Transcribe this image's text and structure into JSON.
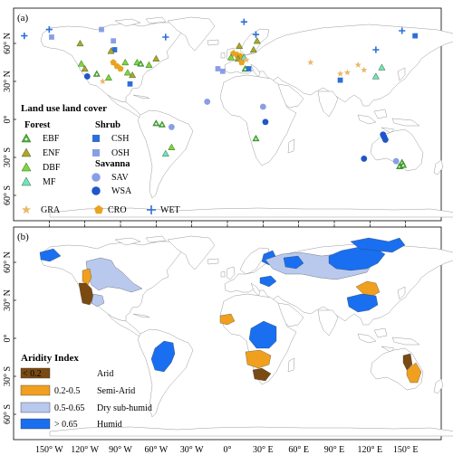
{
  "panels": {
    "a_label": "(a)",
    "b_label": "(b)"
  },
  "x_ticks": [
    "150° W",
    "120° W",
    "90° W",
    "60° W",
    "30° W",
    "0°",
    "30° E",
    "60° E",
    "90° E",
    "120° E",
    "150° E"
  ],
  "y_ticks": [
    "60° N",
    "30° N",
    "0°",
    "30° S",
    "60° S"
  ],
  "legend_a": {
    "title": "Land use land cover",
    "groups": {
      "forest": "Forest",
      "shrub": "Shrub",
      "savanna": "Savanna"
    },
    "items": [
      {
        "code": "EBF",
        "color": "#4caf3a",
        "marker": "tri-open-dot"
      },
      {
        "code": "ENF",
        "color": "#b8a12a",
        "marker": "tri"
      },
      {
        "code": "DBF",
        "color": "#7ed63c",
        "marker": "tri"
      },
      {
        "code": "MF",
        "color": "#74e0c6",
        "marker": "tri"
      },
      {
        "code": "CSH",
        "color": "#2d6fd6",
        "marker": "square"
      },
      {
        "code": "OSH",
        "color": "#8a9ee6",
        "marker": "square"
      },
      {
        "code": "SAV",
        "color": "#8a9ee6",
        "marker": "circle"
      },
      {
        "code": "WSA",
        "color": "#1f56c9",
        "marker": "circle"
      },
      {
        "code": "GRA",
        "color": "#e9b86a",
        "marker": "star"
      },
      {
        "code": "CRO",
        "color": "#e8a41f",
        "marker": "pentagon"
      },
      {
        "code": "WET",
        "color": "#2d6fd6",
        "marker": "plus"
      }
    ]
  },
  "legend_b": {
    "title": "Aridity Index",
    "classes": [
      {
        "range": "< 0.2",
        "name": "Arid",
        "color": "#7a4a12"
      },
      {
        "range": "0.2-0.5",
        "name": "Semi-Arid",
        "color": "#f0a01e"
      },
      {
        "range": "0.5-0.65",
        "name": "Dry sub-humid",
        "color": "#b9c9ee"
      },
      {
        "range": "> 0.65",
        "name": "Humid",
        "color": "#1a6ff0"
      }
    ]
  },
  "sites": [
    {
      "type": "WET",
      "lon": -171,
      "lat": 66
    },
    {
      "type": "WET",
      "lon": -150,
      "lat": 71
    },
    {
      "type": "OSH",
      "lon": -148,
      "lat": 65
    },
    {
      "type": "ENF",
      "lon": -124,
      "lat": 60
    },
    {
      "type": "OSH",
      "lon": -106,
      "lat": 71
    },
    {
      "type": "OSH",
      "lon": -96,
      "lat": 62
    },
    {
      "type": "CSH",
      "lon": -95,
      "lat": 55
    },
    {
      "type": "ENF",
      "lon": -98,
      "lat": 54
    },
    {
      "type": "CRO",
      "lon": -96,
      "lat": 45
    },
    {
      "type": "CRO",
      "lon": -93,
      "lat": 42
    },
    {
      "type": "CRO",
      "lon": -90,
      "lat": 40
    },
    {
      "type": "DBF",
      "lon": -86,
      "lat": 45
    },
    {
      "type": "DBF",
      "lon": -76,
      "lat": 45
    },
    {
      "type": "DBF",
      "lon": -84,
      "lat": 37
    },
    {
      "type": "ENF",
      "lon": -80,
      "lat": 35
    },
    {
      "type": "EBF",
      "lon": -73,
      "lat": 44
    },
    {
      "type": "CSH",
      "lon": -82,
      "lat": 28
    },
    {
      "type": "DBF",
      "lon": -123,
      "lat": 44
    },
    {
      "type": "ENF",
      "lon": -120,
      "lat": 40
    },
    {
      "type": "DBF",
      "lon": -100,
      "lat": 33
    },
    {
      "type": "EBF",
      "lon": -110,
      "lat": 36
    },
    {
      "type": "WSA",
      "lon": -118,
      "lat": 34
    },
    {
      "type": "GRA",
      "lon": -105,
      "lat": 30
    },
    {
      "type": "DBF",
      "lon": -66,
      "lat": 43
    },
    {
      "type": "ENF",
      "lon": -60,
      "lat": 48
    },
    {
      "type": "WET",
      "lon": -52,
      "lat": 65
    },
    {
      "type": "EBF",
      "lon": -60,
      "lat": -3
    },
    {
      "type": "EBF",
      "lon": -55,
      "lat": -4
    },
    {
      "type": "SAV",
      "lon": -47,
      "lat": -6
    },
    {
      "type": "DBF",
      "lon": -47,
      "lat": -22
    },
    {
      "type": "MF",
      "lon": -52,
      "lat": -27
    },
    {
      "type": "WET",
      "lon": 14,
      "lat": 77
    },
    {
      "type": "WET",
      "lon": 24,
      "lat": 67
    },
    {
      "type": "ENF",
      "lon": 25,
      "lat": 62
    },
    {
      "type": "ENF",
      "lon": 10,
      "lat": 58
    },
    {
      "type": "CRO",
      "lon": 5,
      "lat": 52
    },
    {
      "type": "CRO",
      "lon": 8,
      "lat": 51
    },
    {
      "type": "CRO",
      "lon": 11,
      "lat": 50
    },
    {
      "type": "DBF",
      "lon": 3,
      "lat": 49
    },
    {
      "type": "ENF",
      "lon": 9,
      "lat": 48
    },
    {
      "type": "MF",
      "lon": 14,
      "lat": 49
    },
    {
      "type": "GRA",
      "lon": 16,
      "lat": 47
    },
    {
      "type": "CRO",
      "lon": 12,
      "lat": 45
    },
    {
      "type": "OSH",
      "lon": -8,
      "lat": 40
    },
    {
      "type": "OSH",
      "lon": -4,
      "lat": 38
    },
    {
      "type": "EBF",
      "lon": 15,
      "lat": 40
    },
    {
      "type": "CSH",
      "lon": 18,
      "lat": 40
    },
    {
      "type": "ENF",
      "lon": 22,
      "lat": 55
    },
    {
      "type": "SAV",
      "lon": -17,
      "lat": 14
    },
    {
      "type": "EBF",
      "lon": 24,
      "lat": -15
    },
    {
      "type": "SAV",
      "lon": 30,
      "lat": 10
    },
    {
      "type": "WSA",
      "lon": 32,
      "lat": -2
    },
    {
      "type": "GRA",
      "lon": 70,
      "lat": 45
    },
    {
      "type": "GRA",
      "lon": 95,
      "lat": 36
    },
    {
      "type": "CSH",
      "lon": 95,
      "lat": 31
    },
    {
      "type": "GRA",
      "lon": 101,
      "lat": 37
    },
    {
      "type": "GRA",
      "lon": 110,
      "lat": 43
    },
    {
      "type": "GRA",
      "lon": 115,
      "lat": 39
    },
    {
      "type": "MF",
      "lon": 125,
      "lat": 34
    },
    {
      "type": "MF",
      "lon": 130,
      "lat": 41
    },
    {
      "type": "WET",
      "lon": 125,
      "lat": 55
    },
    {
      "type": "WET",
      "lon": 147,
      "lat": 70
    },
    {
      "type": "CSH",
      "lon": 158,
      "lat": 66
    },
    {
      "type": "WSA",
      "lon": 131,
      "lat": -12
    },
    {
      "type": "WSA",
      "lon": 132,
      "lat": -14
    },
    {
      "type": "WSA",
      "lon": 133,
      "lat": -16
    },
    {
      "type": "WSA",
      "lon": 115,
      "lat": -31
    },
    {
      "type": "SAV",
      "lon": 142,
      "lat": -33
    },
    {
      "type": "EBF",
      "lon": 145,
      "lat": -37
    },
    {
      "type": "EBF",
      "lon": 147,
      "lat": -34
    },
    {
      "type": "EBF",
      "lon": 148,
      "lat": -36
    }
  ]
}
